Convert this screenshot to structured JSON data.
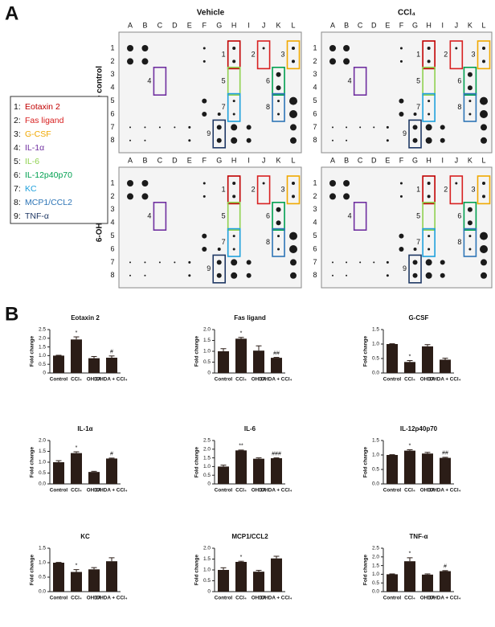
{
  "panel_a": {
    "label": "A",
    "columns": [
      "Vehicle",
      "CCl₄"
    ],
    "rows": [
      "Saline control",
      "6-OHDA"
    ],
    "blot_columns": [
      "A",
      "B",
      "C",
      "D",
      "E",
      "F",
      "G",
      "H",
      "I",
      "J",
      "K",
      "L"
    ],
    "blot_rows": [
      "1",
      "2",
      "3",
      "4",
      "5",
      "6",
      "7",
      "8"
    ],
    "box_labels": [
      "1",
      "2",
      "3",
      "4",
      "5",
      "6",
      "7",
      "8",
      "9"
    ],
    "legend": [
      {
        "number": "1:",
        "name": "Eotaxin 2",
        "color": "#c00000"
      },
      {
        "number": "2:",
        "name": "Fas ligand",
        "color": "#d82020"
      },
      {
        "number": "3:",
        "name": "G-CSF",
        "color": "#f0a800"
      },
      {
        "number": "4:",
        "name": "IL-1α",
        "color": "#7030a0"
      },
      {
        "number": "5:",
        "name": "IL-6",
        "color": "#8fd14f"
      },
      {
        "number": "6:",
        "name": "IL-12p40p70",
        "color": "#00a050"
      },
      {
        "number": "7:",
        "name": "KC",
        "color": "#1ea0dc"
      },
      {
        "number": "8:",
        "name": "MCP1/CCL2",
        "color": "#2e75b6"
      },
      {
        "number": "9:",
        "name": "TNF-α",
        "color": "#1f3864"
      }
    ]
  },
  "panel_b": {
    "label": "B"
  },
  "chart_data": [
    {
      "type": "bar",
      "title": "Eotaxin 2",
      "y_label": "Fold change",
      "color": "#2b1d17",
      "categories": [
        "Control",
        "CCl₄",
        "OHDA",
        "OHDA + CCl₄"
      ],
      "values": [
        1.0,
        1.93,
        0.85,
        0.88
      ],
      "errors": [
        0.02,
        0.15,
        0.1,
        0.1
      ],
      "significance": [
        null,
        "*",
        null,
        "#"
      ],
      "ylim": [
        0,
        2.5
      ],
      "yticks": [
        0,
        0.5,
        {
          "value": 1,
          "label": "1.0"
        },
        1.5,
        {
          "value": 2,
          "label": "2.0"
        },
        2.5
      ]
    },
    {
      "type": "bar",
      "title": "Fas ligand",
      "y_label": "Fold change",
      "color": "#2b1d17",
      "categories": [
        "Control",
        "CCl₄",
        "OHDA",
        "OHDA + CCl₄"
      ],
      "values": [
        1.0,
        1.58,
        1.03,
        0.7
      ],
      "errors": [
        0.12,
        0.06,
        0.22,
        0.02
      ],
      "significance": [
        null,
        "*",
        null,
        "##"
      ],
      "ylim": [
        0,
        2
      ],
      "yticks": [
        0,
        0.5,
        {
          "value": 1,
          "label": "1.0"
        },
        1.5,
        {
          "value": 2,
          "label": "2.0"
        }
      ]
    },
    {
      "type": "bar",
      "title": "G-CSF",
      "y_label": "Fold change",
      "color": "#2b1d17",
      "categories": [
        "Control",
        "CCl₄",
        "OHDA",
        "OHDA + CCl₄"
      ],
      "values": [
        1.0,
        0.38,
        0.92,
        0.46
      ],
      "errors": [
        0.01,
        0.05,
        0.06,
        0.05
      ],
      "significance": [
        null,
        "*",
        null,
        null
      ],
      "ylim": [
        0,
        1.5
      ],
      "yticks": [
        {
          "value": 0,
          "label": "0.0"
        },
        0.5,
        {
          "value": 1,
          "label": "1.0"
        },
        1.5
      ]
    },
    {
      "type": "bar",
      "title": "IL-1α",
      "y_label": "Fold change",
      "color": "#2b1d17",
      "categories": [
        "Control",
        "CCl₄",
        "OHDA",
        "OHDA + CCl₄"
      ],
      "values": [
        1.0,
        1.42,
        0.55,
        1.17
      ],
      "errors": [
        0.07,
        0.06,
        0.03,
        0.02
      ],
      "significance": [
        null,
        "*",
        null,
        "#"
      ],
      "ylim": [
        0,
        2
      ],
      "yticks": [
        {
          "value": 0,
          "label": "0.0"
        },
        0.5,
        {
          "value": 1,
          "label": "1.0"
        },
        1.5,
        {
          "value": 2,
          "label": "2.0"
        }
      ]
    },
    {
      "type": "bar",
      "title": "IL-6",
      "y_label": "Fold change",
      "color": "#2b1d17",
      "categories": [
        "Control",
        "CCl₄",
        "OHDA",
        "OHDA + CCl₄"
      ],
      "values": [
        1.0,
        1.93,
        1.45,
        1.48
      ],
      "errors": [
        0.08,
        0.02,
        0.05,
        0.02
      ],
      "significance": [
        null,
        "**",
        null,
        "###"
      ],
      "ylim": [
        0,
        2.5
      ],
      "yticks": [
        0,
        0.5,
        {
          "value": 1,
          "label": "1.0"
        },
        1.5,
        {
          "value": 2,
          "label": "2.0"
        },
        2.5
      ]
    },
    {
      "type": "bar",
      "title": "IL-12p40p70",
      "y_label": "Fold change",
      "color": "#2b1d17",
      "categories": [
        "Control",
        "CCl₄",
        "OHDA",
        "OHDA + CCl₄"
      ],
      "values": [
        1.0,
        1.15,
        1.05,
        0.9
      ],
      "errors": [
        0.01,
        0.03,
        0.04,
        0.02
      ],
      "significance": [
        null,
        "*",
        null,
        "##"
      ],
      "ylim": [
        0,
        1.5
      ],
      "yticks": [
        {
          "value": 0,
          "label": "0.0"
        },
        0.5,
        {
          "value": 1,
          "label": "1.0"
        },
        1.5
      ]
    },
    {
      "type": "bar",
      "title": "KC",
      "y_label": "Fold change",
      "color": "#2b1d17",
      "categories": [
        "Control",
        "CCl₄",
        "OHDA",
        "OHDA + CCl₄"
      ],
      "values": [
        1.0,
        0.68,
        0.77,
        1.05
      ],
      "errors": [
        0.01,
        0.08,
        0.06,
        0.12
      ],
      "significance": [
        null,
        "*",
        null,
        null
      ],
      "ylim": [
        0,
        1.5
      ],
      "yticks": [
        {
          "value": 0,
          "label": "0.0"
        },
        0.5,
        {
          "value": 1,
          "label": "1.0"
        },
        1.5
      ]
    },
    {
      "type": "bar",
      "title": "MCP1/CCL2",
      "y_label": "Fold change",
      "color": "#2b1d17",
      "categories": [
        "Control",
        "CCl₄",
        "OHDA",
        "OHDA + CCl₄"
      ],
      "values": [
        1.0,
        1.37,
        0.92,
        1.53
      ],
      "errors": [
        0.1,
        0.03,
        0.06,
        0.1
      ],
      "significance": [
        null,
        "*",
        null,
        null
      ],
      "ylim": [
        0,
        2
      ],
      "yticks": [
        0,
        0.5,
        {
          "value": 1,
          "label": "1.0"
        },
        1.5,
        {
          "value": 2,
          "label": "2.0"
        }
      ]
    },
    {
      "type": "bar",
      "title": "TNF-α",
      "y_label": "Fold change",
      "color": "#2b1d17",
      "categories": [
        "Control",
        "CCl₄",
        "OHDA",
        "OHDA + CCl₄"
      ],
      "values": [
        1.0,
        1.75,
        0.98,
        1.18
      ],
      "errors": [
        0.02,
        0.2,
        0.04,
        0.03
      ],
      "significance": [
        null,
        "*",
        null,
        "#"
      ],
      "ylim": [
        0,
        2.5
      ],
      "yticks": [
        {
          "value": 0,
          "label": "0.0"
        },
        0.5,
        {
          "value": 1,
          "label": "1.0"
        },
        1.5,
        {
          "value": 2,
          "label": "2.0"
        },
        2.5
      ]
    }
  ]
}
